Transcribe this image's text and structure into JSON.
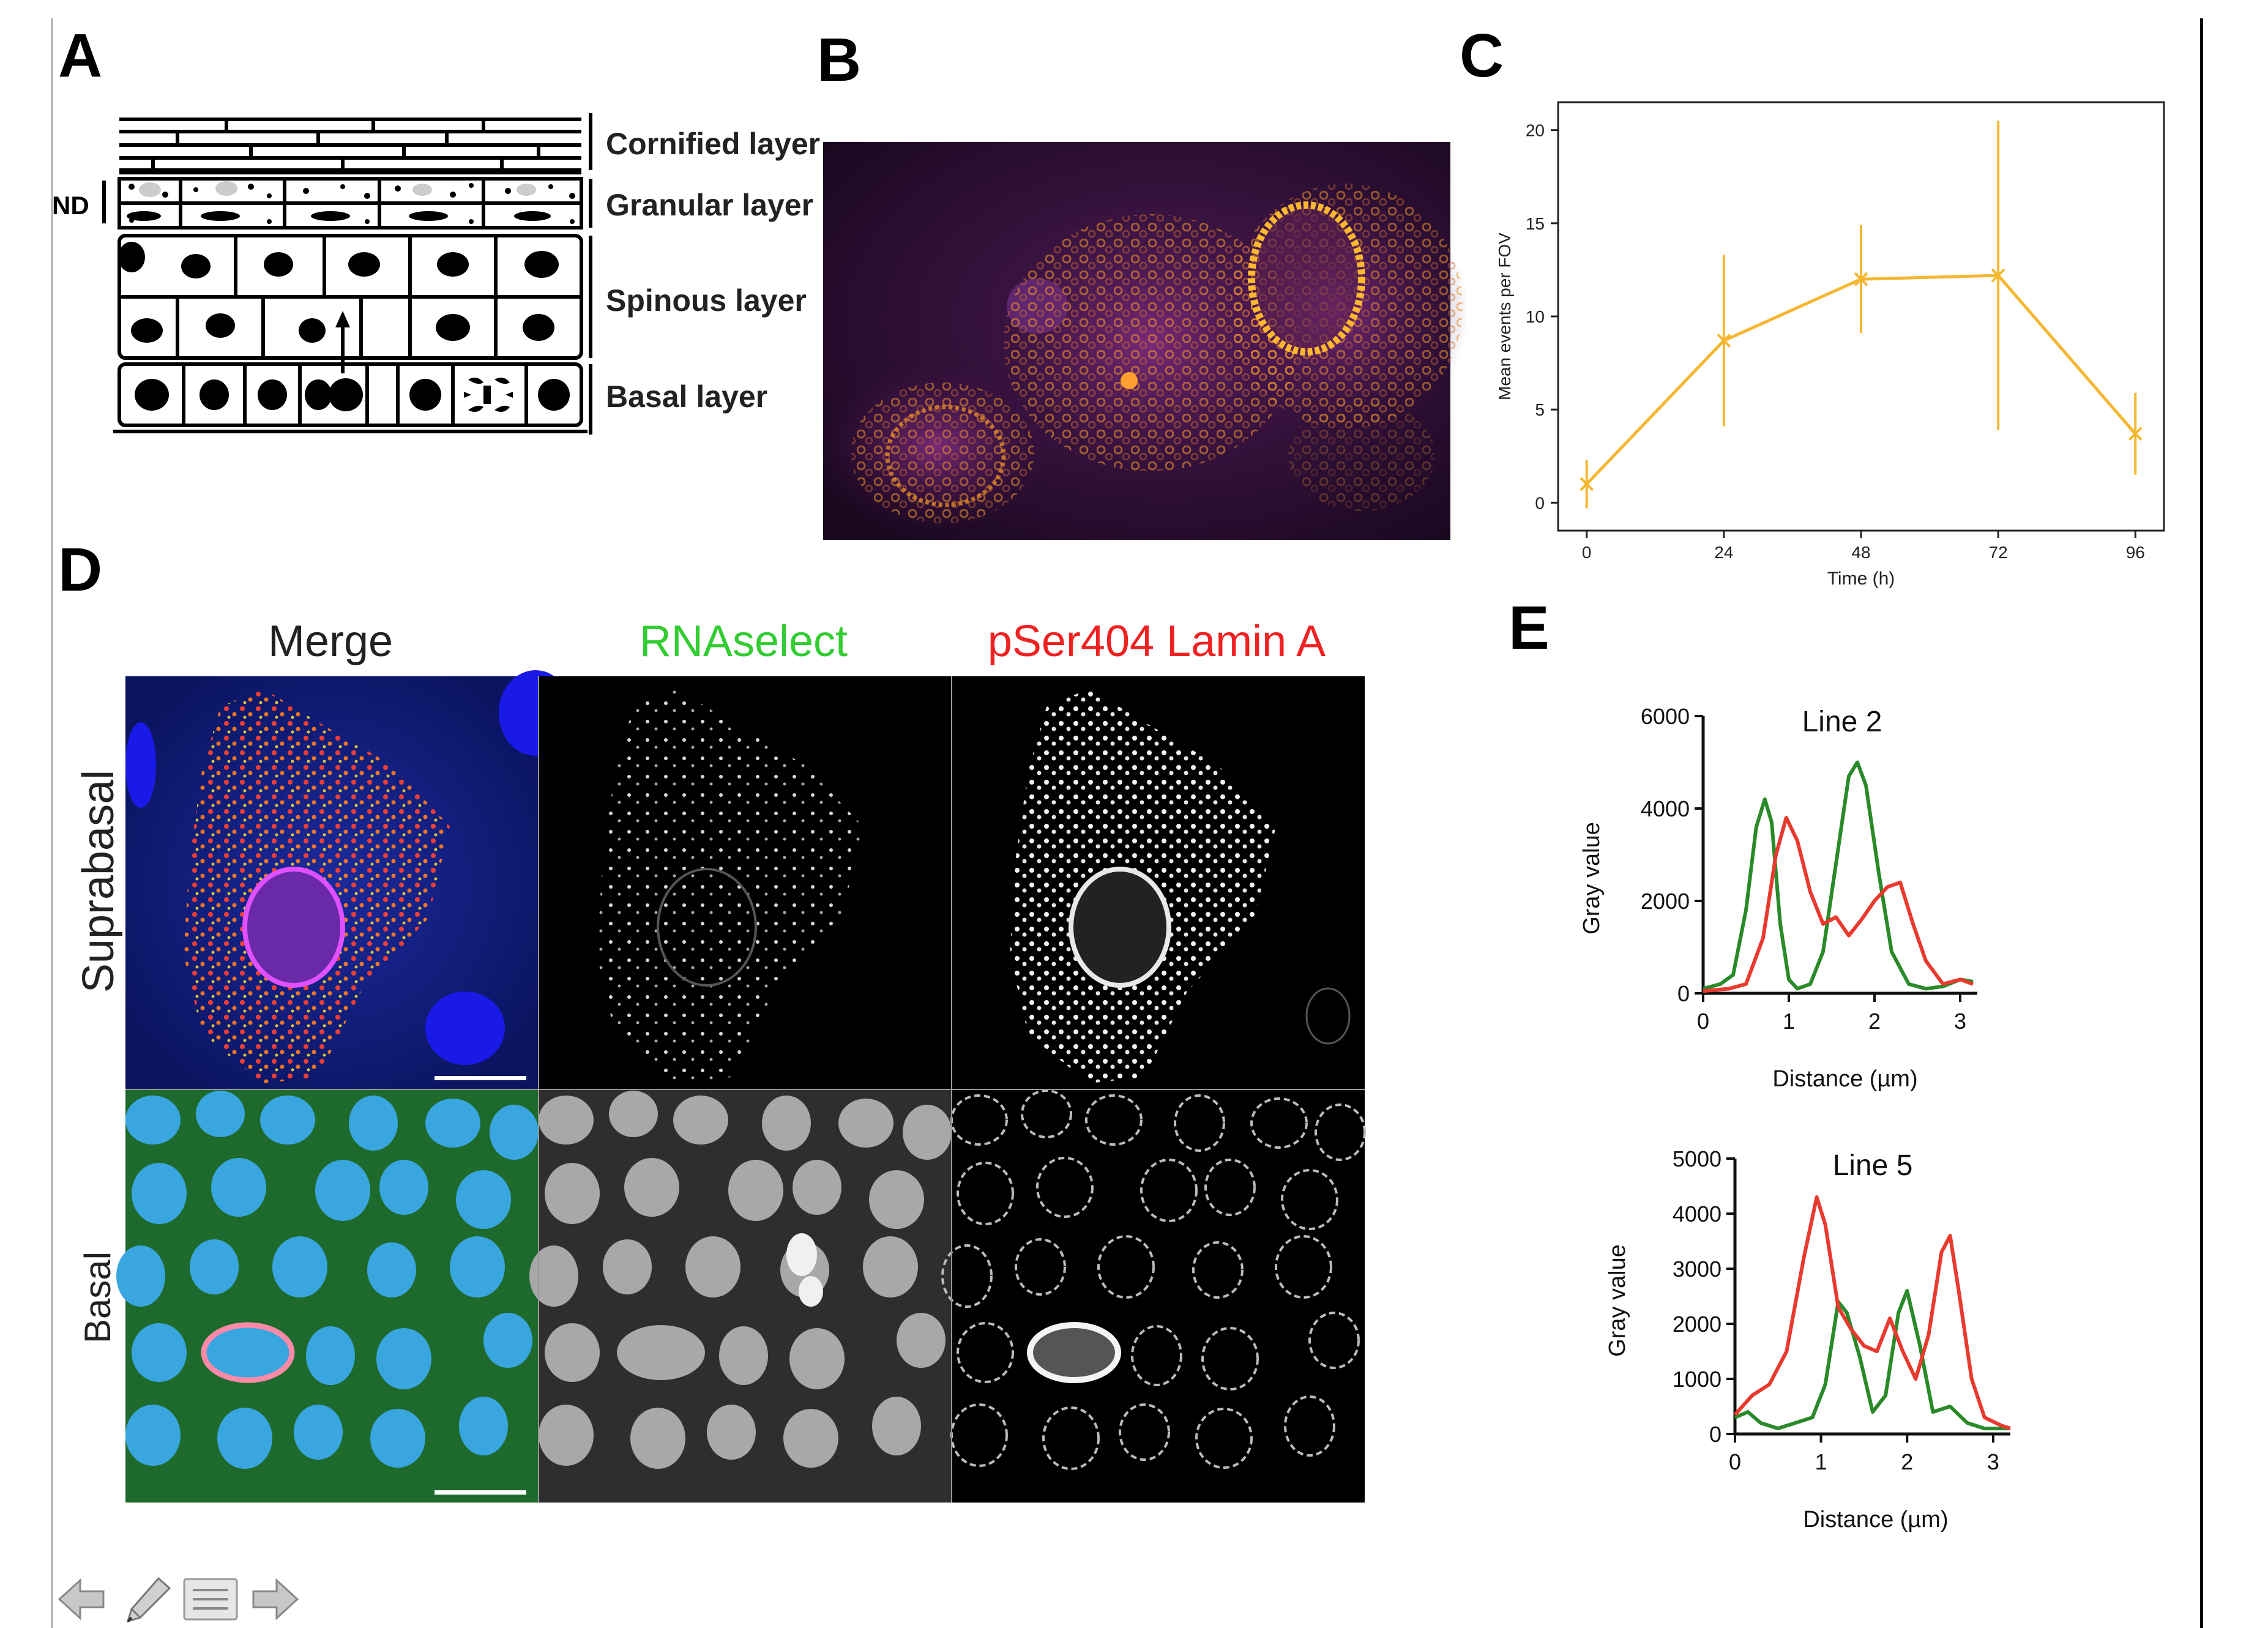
{
  "panels": {
    "A": "A",
    "B": "B",
    "C": "C",
    "D": "D",
    "E": "E"
  },
  "panel_a": {
    "layers": [
      "Cornified layer",
      "Granular layer",
      "Spinous layer",
      "Basal layer"
    ],
    "nd_label": "ND"
  },
  "panel_d": {
    "columns": [
      "Merge",
      "RNAselect",
      "pSer404 Lamin A"
    ],
    "rows": [
      "Suprabasal",
      "Basal"
    ]
  },
  "chart_data": [
    {
      "type": "line",
      "panel": "C",
      "x": [
        0,
        24,
        48,
        72,
        96
      ],
      "values": [
        1.0,
        8.7,
        12.0,
        12.2,
        3.7
      ],
      "error": [
        1.3,
        4.6,
        2.9,
        8.3,
        2.2
      ],
      "xticks": [
        "0",
        "24",
        "48",
        "72",
        "96"
      ],
      "yticks": [
        "0",
        "5",
        "10",
        "15",
        "20"
      ],
      "xlabel": "Time (h)",
      "ylabel": "Mean events per FOV",
      "xlim": [
        -5,
        101
      ],
      "ylim": [
        -1.5,
        21.5
      ],
      "color": "#F5B731"
    },
    {
      "type": "line",
      "panel": "E",
      "title": "Line 2",
      "xlabel": "Distance (µm)",
      "ylabel": "Gray value",
      "xlim": [
        0,
        3.2
      ],
      "ylim": [
        0,
        6000
      ],
      "xticks": [
        "0",
        "1",
        "2",
        "3"
      ],
      "yticks": [
        "0",
        "2000",
        "4000",
        "6000"
      ],
      "series": [
        {
          "name": "RNAselect",
          "color": "#2A8A2A",
          "x": [
            0,
            0.2,
            0.35,
            0.5,
            0.62,
            0.72,
            0.8,
            0.9,
            1.0,
            1.1,
            1.25,
            1.4,
            1.55,
            1.7,
            1.8,
            1.9,
            2.05,
            2.2,
            2.4,
            2.6,
            2.8,
            3.0,
            3.15
          ],
          "y": [
            100,
            200,
            400,
            1800,
            3600,
            4200,
            3700,
            1500,
            300,
            100,
            200,
            900,
            2800,
            4700,
            5000,
            4500,
            2600,
            900,
            200,
            100,
            150,
            300,
            250
          ]
        },
        {
          "name": "pSer404 Lamin A",
          "color": "#E83A2E",
          "x": [
            0,
            0.3,
            0.5,
            0.7,
            0.85,
            0.97,
            1.1,
            1.25,
            1.4,
            1.55,
            1.7,
            1.85,
            2.0,
            2.15,
            2.3,
            2.45,
            2.6,
            2.8,
            3.0,
            3.15
          ],
          "y": [
            50,
            100,
            200,
            1200,
            3000,
            3800,
            3300,
            2200,
            1500,
            1650,
            1250,
            1600,
            2000,
            2300,
            2400,
            1500,
            700,
            200,
            300,
            200
          ]
        }
      ]
    },
    {
      "type": "line",
      "panel": "E",
      "title": "Line 5",
      "xlabel": "Distance (µm)",
      "ylabel": "Gray value",
      "xlim": [
        0,
        3.2
      ],
      "ylim": [
        0,
        5000
      ],
      "xticks": [
        "0",
        "1",
        "2",
        "3"
      ],
      "yticks": [
        "0",
        "1000",
        "2000",
        "3000",
        "4000",
        "5000"
      ],
      "series": [
        {
          "name": "RNAselect",
          "color": "#2A8A2A",
          "x": [
            0,
            0.15,
            0.3,
            0.5,
            0.7,
            0.9,
            1.05,
            1.2,
            1.3,
            1.45,
            1.6,
            1.75,
            1.9,
            2.0,
            2.15,
            2.3,
            2.5,
            2.7,
            2.9,
            3.1,
            3.2
          ],
          "y": [
            300,
            400,
            200,
            100,
            200,
            300,
            900,
            2400,
            2200,
            1400,
            400,
            700,
            2200,
            2600,
            1600,
            400,
            500,
            200,
            100,
            100,
            100
          ]
        },
        {
          "name": "pSer404 Lamin A",
          "color": "#E83A2E",
          "x": [
            0,
            0.2,
            0.4,
            0.6,
            0.8,
            0.95,
            1.05,
            1.2,
            1.35,
            1.5,
            1.65,
            1.8,
            1.95,
            2.1,
            2.25,
            2.4,
            2.5,
            2.6,
            2.75,
            2.9,
            3.1,
            3.2
          ],
          "y": [
            350,
            700,
            900,
            1500,
            3200,
            4300,
            3800,
            2300,
            1900,
            1600,
            1500,
            2100,
            1500,
            1000,
            1800,
            3300,
            3600,
            2600,
            1000,
            300,
            150,
            100
          ]
        }
      ]
    }
  ],
  "nav": {
    "icons": [
      "arrow-left-icon",
      "pencil-icon",
      "list-icon",
      "arrow-right-icon"
    ]
  }
}
